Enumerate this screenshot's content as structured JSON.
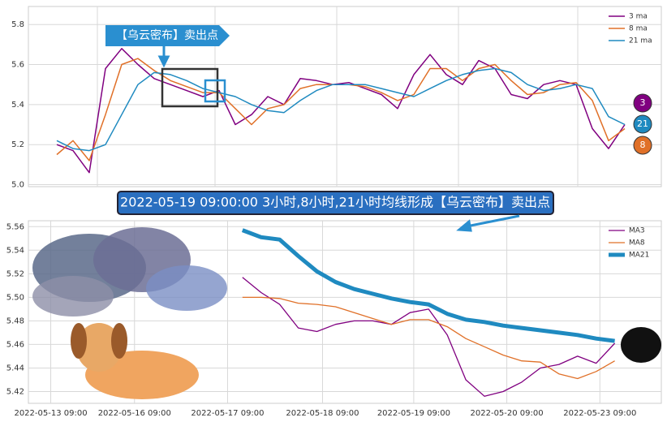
{
  "chart_data": [
    {
      "type": "line",
      "annotation": "【乌云密布】卖出点",
      "badges": [
        {
          "text": "3",
          "color": "#800080"
        },
        {
          "text": "21",
          "color": "#1f8ac0"
        },
        {
          "text": "8",
          "color": "#e07028"
        }
      ],
      "ylim": [
        4.99,
        5.89
      ],
      "yticks": [
        {
          "value": 5,
          "label": "5.0"
        },
        5.2,
        5.4,
        5.6,
        5.8
      ],
      "grid": true,
      "legend": "upper right",
      "series": [
        {
          "name": "3 ma",
          "color": "#800080",
          "values": [
            5.2,
            5.17,
            5.06,
            5.58,
            5.68,
            5.6,
            5.53,
            5.5,
            5.47,
            5.44,
            5.47,
            5.3,
            5.35,
            5.44,
            5.4,
            5.53,
            5.52,
            5.5,
            5.51,
            5.48,
            5.45,
            5.38,
            5.55,
            5.65,
            5.55,
            5.5,
            5.62,
            5.58,
            5.45,
            5.43,
            5.5,
            5.52,
            5.5,
            5.28,
            5.18,
            5.3
          ]
        },
        {
          "name": "8 ma",
          "color": "#e07028",
          "values": [
            5.15,
            5.22,
            5.12,
            5.35,
            5.6,
            5.63,
            5.57,
            5.52,
            5.49,
            5.46,
            5.46,
            5.38,
            5.3,
            5.38,
            5.4,
            5.48,
            5.5,
            5.5,
            5.5,
            5.49,
            5.46,
            5.42,
            5.45,
            5.58,
            5.58,
            5.52,
            5.58,
            5.6,
            5.52,
            5.45,
            5.46,
            5.5,
            5.51,
            5.42,
            5.22,
            5.28
          ]
        },
        {
          "name": "21 ma",
          "color": "#1f8ac0",
          "values": [
            5.22,
            5.18,
            5.17,
            5.2,
            5.35,
            5.5,
            5.56,
            5.55,
            5.52,
            5.48,
            5.46,
            5.44,
            5.4,
            5.37,
            5.36,
            5.42,
            5.47,
            5.5,
            5.5,
            5.5,
            5.48,
            5.46,
            5.44,
            5.48,
            5.52,
            5.55,
            5.57,
            5.58,
            5.56,
            5.5,
            5.47,
            5.48,
            5.5,
            5.48,
            5.34,
            5.3
          ]
        }
      ]
    },
    {
      "type": "line",
      "annotation": "2022-05-19 09:00:00 3小时,8小时,21小时均线形成【乌云密布】卖出点",
      "xlim": [
        0,
        34
      ],
      "xticks": [
        {
          "value": 1.2,
          "label": "2022-05-13 09:00"
        },
        {
          "value": 5.7,
          "label": "2022-05-16 09:00"
        },
        {
          "value": 10.7,
          "label": "2022-05-17 09:00"
        },
        {
          "value": 15.8,
          "label": "2022-05-18 09:00"
        },
        {
          "value": 20.7,
          "label": "2022-05-19 09:00"
        },
        {
          "value": 25.7,
          "label": "2022-05-20 09:00"
        },
        {
          "value": 30.7,
          "label": "2022-05-23 09:00"
        }
      ],
      "ylim": [
        5.41,
        5.565
      ],
      "yticks": [
        5.42,
        5.44,
        5.46,
        5.48,
        {
          "value": 5.5,
          "label": "5.50"
        },
        5.52,
        5.54,
        5.56
      ],
      "grid": true,
      "legend": "upper right",
      "x": [
        11.5,
        12.5,
        13.5,
        14.5,
        15.5,
        16.5,
        17.5,
        18.5,
        19.5,
        20.5,
        21.5,
        22.5,
        23.5,
        24.5,
        25.5,
        26.5,
        27.5,
        28.5,
        29.5,
        30.5,
        31.5
      ],
      "series": [
        {
          "name": "MA3",
          "color": "#800080",
          "width": 1.3,
          "values": [
            5.517,
            5.504,
            5.494,
            5.474,
            5.471,
            5.477,
            5.48,
            5.48,
            5.477,
            5.487,
            5.49,
            5.468,
            5.43,
            5.416,
            5.42,
            5.428,
            5.44,
            5.443,
            5.45,
            5.444,
            5.461
          ]
        },
        {
          "name": "MA8",
          "color": "#e07028",
          "width": 1.3,
          "values": [
            5.5,
            5.5,
            5.499,
            5.495,
            5.494,
            5.492,
            5.487,
            5.482,
            5.477,
            5.481,
            5.481,
            5.475,
            5.465,
            5.458,
            5.451,
            5.446,
            5.445,
            5.435,
            5.431,
            5.437,
            5.446
          ]
        },
        {
          "name": "MA21",
          "color": "#1f8ac0",
          "width": 5,
          "values": [
            5.557,
            5.551,
            5.549,
            5.535,
            5.522,
            5.513,
            5.507,
            5.503,
            5.499,
            5.496,
            5.494,
            5.486,
            5.481,
            5.479,
            5.476,
            5.474,
            5.472,
            5.47,
            5.468,
            5.465,
            5.463
          ]
        }
      ]
    }
  ]
}
